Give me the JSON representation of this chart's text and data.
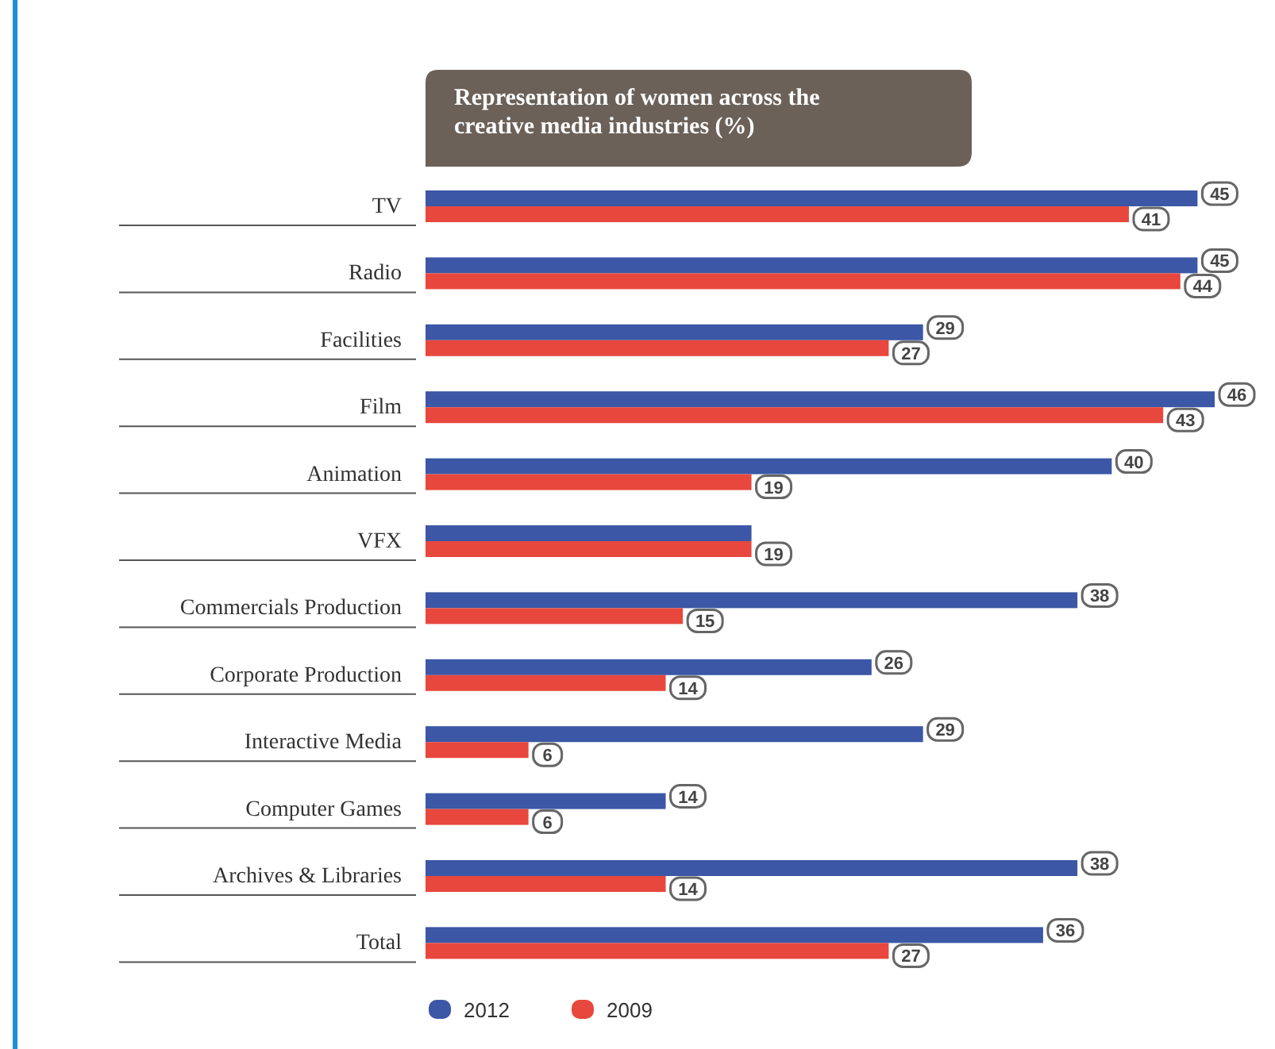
{
  "chart_data": {
    "type": "bar",
    "orientation": "horizontal",
    "title": "Representation of women across the creative media industries (%)",
    "categories": [
      "TV",
      "Radio",
      "Facilities",
      "Film",
      "Animation",
      "VFX",
      "Commercials Production",
      "Corporate Production",
      "Interactive Media",
      "Computer Games",
      "Archives & Libraries",
      "Total"
    ],
    "series": [
      {
        "name": "2012",
        "color": "#3b57a6",
        "values": [
          45,
          45,
          29,
          46,
          40,
          19,
          38,
          26,
          29,
          14,
          38,
          36
        ],
        "value_labels": [
          "45",
          "45",
          "29",
          "46",
          "40",
          null,
          "38",
          "26",
          "29",
          "14",
          "38",
          "36"
        ]
      },
      {
        "name": "2009",
        "color": "#e8473d",
        "values": [
          41,
          44,
          27,
          43,
          19,
          19,
          15,
          14,
          6,
          6,
          14,
          27
        ],
        "value_labels": [
          "41",
          "44",
          "27",
          "43",
          "19",
          "19",
          "15",
          "14",
          "6",
          "6",
          "14",
          "27"
        ]
      }
    ],
    "legend": "bottom"
  }
}
